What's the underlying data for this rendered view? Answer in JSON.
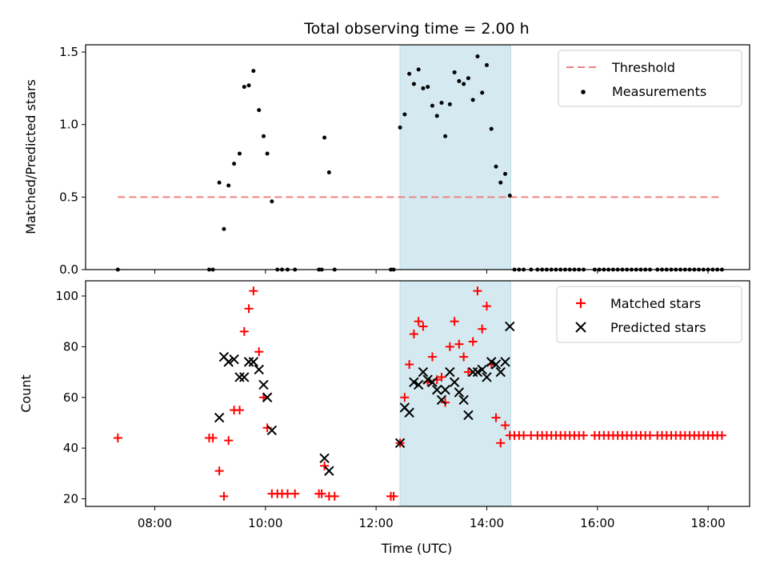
{
  "chart_data": {
    "type": "scatter",
    "title": "Total observing time = 2.00 h",
    "xlabel": "Time (UTC)",
    "x_ticks": [
      "08:00",
      "10:00",
      "12:00",
      "14:00",
      "16:00",
      "18:00"
    ],
    "xlim": [
      "06:45",
      "18:45"
    ],
    "observing_window": {
      "start": "12:26",
      "end": "14:26",
      "color": "#d4eaf0"
    },
    "panels": [
      {
        "id": "ratio",
        "ylabel": "Matched/Predicted stars",
        "ylim": [
          0,
          1.55
        ],
        "y_ticks": [
          "0.0",
          "0.5",
          "1.0",
          "1.5"
        ],
        "threshold": {
          "name": "Threshold",
          "value": 0.5,
          "x_start": "07:20",
          "x_end": "18:15",
          "color": "#f08080"
        },
        "series": [
          {
            "name": "Measurements",
            "marker": "dot",
            "color": "#000000",
            "points": [
              [
                "07:20",
                0.0
              ],
              [
                "08:59",
                0.0
              ],
              [
                "09:03",
                0.0
              ],
              [
                "09:10",
                0.6
              ],
              [
                "09:15",
                0.28
              ],
              [
                "09:20",
                0.58
              ],
              [
                "09:26",
                0.73
              ],
              [
                "09:32",
                0.8
              ],
              [
                "09:37",
                1.26
              ],
              [
                "09:42",
                1.27
              ],
              [
                "09:47",
                1.37
              ],
              [
                "09:53",
                1.1
              ],
              [
                "09:58",
                0.92
              ],
              [
                "10:02",
                0.8
              ],
              [
                "10:07",
                0.47
              ],
              [
                "10:13",
                0.0
              ],
              [
                "10:18",
                0.0
              ],
              [
                "10:24",
                0.0
              ],
              [
                "10:32",
                0.0
              ],
              [
                "10:58",
                0.0
              ],
              [
                "11:01",
                0.0
              ],
              [
                "11:04",
                0.91
              ],
              [
                "11:09",
                0.67
              ],
              [
                "11:15",
                0.0
              ],
              [
                "12:16",
                0.0
              ],
              [
                "12:19",
                0.0
              ],
              [
                "12:26",
                0.98
              ],
              [
                "12:31",
                1.07
              ],
              [
                "12:36",
                1.35
              ],
              [
                "12:41",
                1.28
              ],
              [
                "12:46",
                1.38
              ],
              [
                "12:51",
                1.25
              ],
              [
                "12:56",
                1.26
              ],
              [
                "13:01",
                1.13
              ],
              [
                "13:06",
                1.06
              ],
              [
                "13:11",
                1.15
              ],
              [
                "13:15",
                0.92
              ],
              [
                "13:20",
                1.14
              ],
              [
                "13:25",
                1.36
              ],
              [
                "13:30",
                1.3
              ],
              [
                "13:35",
                1.28
              ],
              [
                "13:40",
                1.32
              ],
              [
                "13:45",
                1.17
              ],
              [
                "13:50",
                1.47
              ],
              [
                "13:55",
                1.22
              ],
              [
                "14:00",
                1.41
              ],
              [
                "14:05",
                0.97
              ],
              [
                "14:10",
                0.71
              ],
              [
                "14:15",
                0.6
              ],
              [
                "14:20",
                0.66
              ],
              [
                "14:25",
                0.51
              ],
              [
                "14:30",
                0.0
              ],
              [
                "14:35",
                0.0
              ],
              [
                "14:40",
                0.0
              ],
              [
                "14:48",
                0.0
              ],
              [
                "14:55",
                0.0
              ],
              [
                "15:00",
                0.0
              ],
              [
                "15:05",
                0.0
              ],
              [
                "15:10",
                0.0
              ],
              [
                "15:15",
                0.0
              ],
              [
                "15:20",
                0.0
              ],
              [
                "15:25",
                0.0
              ],
              [
                "15:30",
                0.0
              ],
              [
                "15:35",
                0.0
              ],
              [
                "15:40",
                0.0
              ],
              [
                "15:45",
                0.0
              ],
              [
                "15:57",
                0.0
              ],
              [
                "16:02",
                0.0
              ],
              [
                "16:07",
                0.0
              ],
              [
                "16:12",
                0.0
              ],
              [
                "16:17",
                0.0
              ],
              [
                "16:22",
                0.0
              ],
              [
                "16:27",
                0.0
              ],
              [
                "16:32",
                0.0
              ],
              [
                "16:37",
                0.0
              ],
              [
                "16:42",
                0.0
              ],
              [
                "16:47",
                0.0
              ],
              [
                "16:52",
                0.0
              ],
              [
                "16:57",
                0.0
              ],
              [
                "17:05",
                0.0
              ],
              [
                "17:10",
                0.0
              ],
              [
                "17:15",
                0.0
              ],
              [
                "17:20",
                0.0
              ],
              [
                "17:25",
                0.0
              ],
              [
                "17:30",
                0.0
              ],
              [
                "17:35",
                0.0
              ],
              [
                "17:40",
                0.0
              ],
              [
                "17:45",
                0.0
              ],
              [
                "17:50",
                0.0
              ],
              [
                "17:55",
                0.0
              ],
              [
                "18:00",
                0.0
              ],
              [
                "18:05",
                0.0
              ],
              [
                "18:10",
                0.0
              ],
              [
                "18:15",
                0.0
              ]
            ]
          }
        ],
        "legend": {
          "placement": "top-right",
          "entries": [
            "Threshold",
            "Measurements"
          ]
        }
      },
      {
        "id": "count",
        "ylabel": "Count",
        "ylim": [
          17,
          106
        ],
        "y_ticks": [
          "20",
          "40",
          "60",
          "80",
          "100"
        ],
        "series": [
          {
            "name": "Matched stars",
            "marker": "plus",
            "color": "#ff0000",
            "points": [
              [
                "07:20",
                44
              ],
              [
                "08:59",
                44
              ],
              [
                "09:03",
                44
              ],
              [
                "09:10",
                31
              ],
              [
                "09:15",
                21
              ],
              [
                "09:20",
                43
              ],
              [
                "09:26",
                55
              ],
              [
                "09:32",
                55
              ],
              [
                "09:37",
                86
              ],
              [
                "09:42",
                95
              ],
              [
                "09:47",
                102
              ],
              [
                "09:53",
                78
              ],
              [
                "09:58",
                60
              ],
              [
                "10:02",
                48
              ],
              [
                "10:07",
                22
              ],
              [
                "10:13",
                22
              ],
              [
                "10:18",
                22
              ],
              [
                "10:24",
                22
              ],
              [
                "10:32",
                22
              ],
              [
                "10:58",
                22
              ],
              [
                "11:01",
                22
              ],
              [
                "11:04",
                33
              ],
              [
                "11:09",
                21
              ],
              [
                "11:15",
                21
              ],
              [
                "12:16",
                21
              ],
              [
                "12:19",
                21
              ],
              [
                "12:26",
                42
              ],
              [
                "12:31",
                60
              ],
              [
                "12:36",
                73
              ],
              [
                "12:41",
                85
              ],
              [
                "12:46",
                90
              ],
              [
                "12:51",
                88
              ],
              [
                "12:56",
                66
              ],
              [
                "13:01",
                76
              ],
              [
                "13:06",
                67
              ],
              [
                "13:11",
                68
              ],
              [
                "13:15",
                58
              ],
              [
                "13:20",
                80
              ],
              [
                "13:25",
                90
              ],
              [
                "13:30",
                81
              ],
              [
                "13:35",
                76
              ],
              [
                "13:40",
                70
              ],
              [
                "13:45",
                82
              ],
              [
                "13:50",
                102
              ],
              [
                "13:55",
                87
              ],
              [
                "14:00",
                96
              ],
              [
                "14:05",
                73
              ],
              [
                "14:10",
                52
              ],
              [
                "14:15",
                42
              ],
              [
                "14:20",
                49
              ],
              [
                "14:25",
                45
              ],
              [
                "14:30",
                45
              ],
              [
                "14:35",
                45
              ],
              [
                "14:40",
                45
              ],
              [
                "14:48",
                45
              ],
              [
                "14:55",
                45
              ],
              [
                "15:00",
                45
              ],
              [
                "15:05",
                45
              ],
              [
                "15:10",
                45
              ],
              [
                "15:15",
                45
              ],
              [
                "15:20",
                45
              ],
              [
                "15:25",
                45
              ],
              [
                "15:30",
                45
              ],
              [
                "15:35",
                45
              ],
              [
                "15:40",
                45
              ],
              [
                "15:45",
                45
              ],
              [
                "15:57",
                45
              ],
              [
                "16:02",
                45
              ],
              [
                "16:07",
                45
              ],
              [
                "16:12",
                45
              ],
              [
                "16:17",
                45
              ],
              [
                "16:22",
                45
              ],
              [
                "16:27",
                45
              ],
              [
                "16:32",
                45
              ],
              [
                "16:37",
                45
              ],
              [
                "16:42",
                45
              ],
              [
                "16:47",
                45
              ],
              [
                "16:52",
                45
              ],
              [
                "16:57",
                45
              ],
              [
                "17:05",
                45
              ],
              [
                "17:10",
                45
              ],
              [
                "17:15",
                45
              ],
              [
                "17:20",
                45
              ],
              [
                "17:25",
                45
              ],
              [
                "17:30",
                45
              ],
              [
                "17:35",
                45
              ],
              [
                "17:40",
                45
              ],
              [
                "17:45",
                45
              ],
              [
                "17:50",
                45
              ],
              [
                "17:55",
                45
              ],
              [
                "18:00",
                45
              ],
              [
                "18:05",
                45
              ],
              [
                "18:10",
                45
              ],
              [
                "18:15",
                45
              ]
            ]
          },
          {
            "name": "Predicted stars",
            "marker": "x",
            "color": "#000000",
            "points": [
              [
                "09:10",
                52
              ],
              [
                "09:15",
                76
              ],
              [
                "09:20",
                74
              ],
              [
                "09:26",
                75
              ],
              [
                "09:32",
                68
              ],
              [
                "09:37",
                68
              ],
              [
                "09:42",
                74
              ],
              [
                "09:47",
                74
              ],
              [
                "09:53",
                71
              ],
              [
                "09:58",
                65
              ],
              [
                "10:02",
                60
              ],
              [
                "10:07",
                47
              ],
              [
                "11:04",
                36
              ],
              [
                "11:09",
                31
              ],
              [
                "12:26",
                42
              ],
              [
                "12:31",
                56
              ],
              [
                "12:36",
                54
              ],
              [
                "12:41",
                66
              ],
              [
                "12:46",
                65
              ],
              [
                "12:51",
                70
              ],
              [
                "12:56",
                67
              ],
              [
                "13:01",
                66
              ],
              [
                "13:06",
                63
              ],
              [
                "13:11",
                59
              ],
              [
                "13:15",
                63
              ],
              [
                "13:20",
                70
              ],
              [
                "13:25",
                66
              ],
              [
                "13:30",
                62
              ],
              [
                "13:35",
                59
              ],
              [
                "13:40",
                53
              ],
              [
                "13:45",
                70
              ],
              [
                "13:50",
                70
              ],
              [
                "13:55",
                71
              ],
              [
                "14:00",
                68
              ],
              [
                "14:05",
                74
              ],
              [
                "14:10",
                73
              ],
              [
                "14:15",
                70
              ],
              [
                "14:20",
                74
              ],
              [
                "14:25",
                88
              ]
            ]
          }
        ],
        "legend": {
          "placement": "top-right",
          "entries": [
            "Matched stars",
            "Predicted stars"
          ]
        }
      }
    ]
  }
}
